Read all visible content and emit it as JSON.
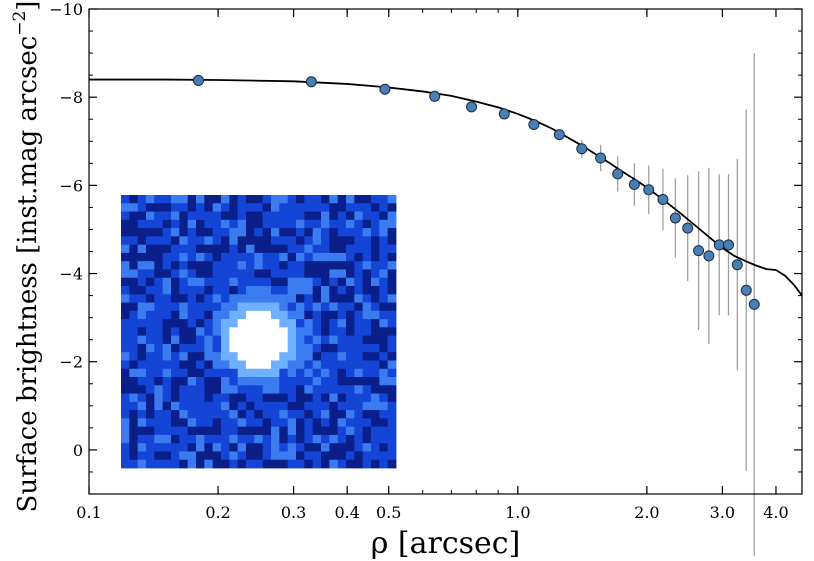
{
  "chart_data": {
    "type": "scatter",
    "xlabel": "ρ [arcsec]",
    "ylabel": "Surface brightness [inst.mag arcsec",
    "ylabel_superscript": "−2",
    "ylabel_close": "]",
    "x_scale": "log",
    "xlim": [
      0.1,
      4.6
    ],
    "ylim": [
      1.0,
      -10.0
    ],
    "y_inverted": true,
    "grid": false,
    "x_ticks": [
      {
        "value": 0.1,
        "label": "0.1"
      },
      {
        "value": 0.2,
        "label": "0.2"
      },
      {
        "value": 0.3,
        "label": "0.3"
      },
      {
        "value": 0.4,
        "label": "0.4"
      },
      {
        "value": 0.5,
        "label": "0.5"
      },
      {
        "value": 1.0,
        "label": "1.0"
      },
      {
        "value": 2.0,
        "label": "2.0"
      },
      {
        "value": 3.0,
        "label": "3.0"
      },
      {
        "value": 4.0,
        "label": "4.0"
      }
    ],
    "y_ticks": [
      {
        "value": -10,
        "label": "−10"
      },
      {
        "value": -8,
        "label": "−8"
      },
      {
        "value": -6,
        "label": "−6"
      },
      {
        "value": -4,
        "label": "−4"
      },
      {
        "value": -2,
        "label": "−2"
      },
      {
        "value": 0,
        "label": "0"
      }
    ],
    "points": [
      {
        "x": 0.18,
        "y": -8.38,
        "err": 0.05
      },
      {
        "x": 0.33,
        "y": -8.35,
        "err": 0.05
      },
      {
        "x": 0.49,
        "y": -8.18,
        "err": 0.05
      },
      {
        "x": 0.64,
        "y": -8.02,
        "err": 0.05
      },
      {
        "x": 0.78,
        "y": -7.78,
        "err": 0.05
      },
      {
        "x": 0.93,
        "y": -7.62,
        "err": 0.08
      },
      {
        "x": 1.09,
        "y": -7.38,
        "err": 0.1
      },
      {
        "x": 1.25,
        "y": -7.15,
        "err": 0.12
      },
      {
        "x": 1.41,
        "y": -6.83,
        "err": 0.2
      },
      {
        "x": 1.56,
        "y": -6.62,
        "err": 0.3
      },
      {
        "x": 1.71,
        "y": -6.26,
        "err": 0.4
      },
      {
        "x": 1.87,
        "y": -6.02,
        "err": 0.48
      },
      {
        "x": 2.02,
        "y": -5.9,
        "err": 0.55
      },
      {
        "x": 2.18,
        "y": -5.68,
        "err": 0.7
      },
      {
        "x": 2.33,
        "y": -5.26,
        "err": 0.9
      },
      {
        "x": 2.49,
        "y": -5.03,
        "err": 1.2
      },
      {
        "x": 2.64,
        "y": -4.52,
        "err": 1.8
      },
      {
        "x": 2.79,
        "y": -4.4,
        "err": 2.0
      },
      {
        "x": 2.95,
        "y": -4.65,
        "err": 1.6
      },
      {
        "x": 3.1,
        "y": -4.65,
        "err": 1.6
      },
      {
        "x": 3.25,
        "y": -4.2,
        "err": 2.4
      },
      {
        "x": 3.41,
        "y": -3.62,
        "err": 4.1
      },
      {
        "x": 3.56,
        "y": -3.3,
        "err": 5.7
      }
    ],
    "model_curve": {
      "x": [
        0.1,
        0.15,
        0.2,
        0.3,
        0.4,
        0.5,
        0.6,
        0.7,
        0.8,
        0.9,
        1.0,
        1.1,
        1.2,
        1.3,
        1.4,
        1.5,
        1.6,
        1.7,
        1.8,
        1.9,
        2.0,
        2.2,
        2.4,
        2.6,
        2.8,
        3.0,
        3.2,
        3.4,
        3.6,
        3.8,
        4.0,
        4.2,
        4.4,
        4.6
      ],
      "y": [
        -8.4,
        -8.4,
        -8.39,
        -8.36,
        -8.3,
        -8.22,
        -8.13,
        -8.03,
        -7.9,
        -7.77,
        -7.62,
        -7.46,
        -7.29,
        -7.1,
        -6.92,
        -6.74,
        -6.57,
        -6.4,
        -6.24,
        -6.1,
        -5.95,
        -5.65,
        -5.36,
        -5.08,
        -4.82,
        -4.58,
        -4.4,
        -4.28,
        -4.18,
        -4.1,
        -4.08,
        -3.95,
        -3.75,
        -3.5
      ]
    },
    "inset": {
      "cols": 33,
      "rows": 33,
      "source_center_col": 16,
      "source_center_row": 17,
      "source_radius_cells": 3.5,
      "colors": {
        "background_dark": "#0a1f8a",
        "background_mid": "#1445d6",
        "background_light": "#3a7bf0",
        "halo": "#6fb0ff",
        "core": "#ffffff"
      }
    },
    "colors": {
      "marker_fill": "#4a7fb5",
      "marker_edge": "#1a2a44",
      "errorbar": "#a0a0a0",
      "curve": "#000000",
      "axes": "#000000"
    }
  }
}
